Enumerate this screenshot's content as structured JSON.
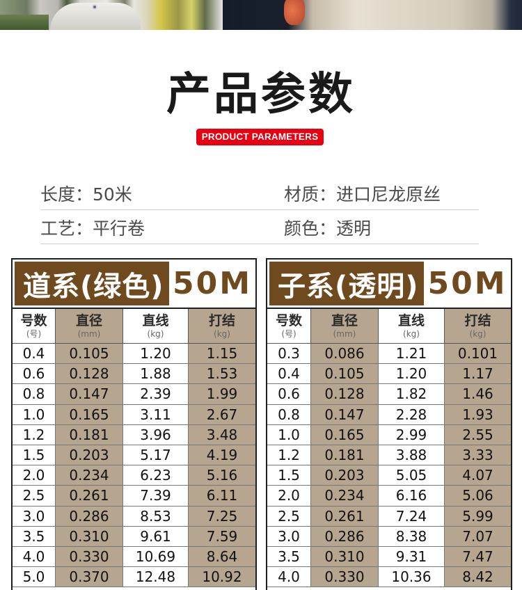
{
  "banner": {
    "left_photo": "fish-on-grass-photo",
    "right_photo": "fish-closeup-photo"
  },
  "title": "产品参数",
  "subtitle": "PRODUCT PARAMETERS",
  "specs": [
    {
      "label": "长度：",
      "value": "50米"
    },
    {
      "label": "材质：",
      "value": "进口尼龙原丝"
    },
    {
      "label": "工艺：",
      "value": "平行卷"
    },
    {
      "label": "颜色：",
      "value": "透明"
    }
  ],
  "colors": {
    "brand_brown": "#6f4a1f",
    "shade_cell": "#b6a690",
    "badge_red": "#e60012"
  },
  "tables": [
    {
      "name": "道系(绿色)",
      "length": "50M",
      "columns": [
        {
          "main": "号数",
          "unit": "(号)"
        },
        {
          "main": "直径",
          "unit": "(mm)"
        },
        {
          "main": "直线",
          "unit": "(kg)"
        },
        {
          "main": "打结",
          "unit": "(kg)"
        }
      ],
      "rows": [
        [
          "0.4",
          "0.105",
          "1.20",
          "1.15"
        ],
        [
          "0.6",
          "0.128",
          "1.88",
          "1.53"
        ],
        [
          "0.8",
          "0.147",
          "2.39",
          "1.99"
        ],
        [
          "1.0",
          "0.165",
          "3.11",
          "2.67"
        ],
        [
          "1.2",
          "0.181",
          "3.96",
          "3.48"
        ],
        [
          "1.5",
          "0.203",
          "5.17",
          "4.19"
        ],
        [
          "2.0",
          "0.234",
          "6.23",
          "5.16"
        ],
        [
          "2.5",
          "0.261",
          "7.39",
          "6.11"
        ],
        [
          "3.0",
          "0.286",
          "8.53",
          "7.25"
        ],
        [
          "3.5",
          "0.310",
          "9.61",
          "7.59"
        ],
        [
          "4.0",
          "0.330",
          "10.69",
          "8.64"
        ],
        [
          "5.0",
          "0.370",
          "12.48",
          "10.92"
        ]
      ]
    },
    {
      "name": "子系(透明)",
      "length": "50M",
      "columns": [
        {
          "main": "号数",
          "unit": "(号)"
        },
        {
          "main": "直径",
          "unit": "(mm)"
        },
        {
          "main": "直线",
          "unit": "(kg)"
        },
        {
          "main": "打结",
          "unit": "(kg)"
        }
      ],
      "rows": [
        [
          "0.3",
          "0.086",
          "1.21",
          "0.101"
        ],
        [
          "0.4",
          "0.105",
          "1.20",
          "1.17"
        ],
        [
          "0.6",
          "0.128",
          "1.82",
          "1.46"
        ],
        [
          "0.8",
          "0.147",
          "2.28",
          "1.93"
        ],
        [
          "1.0",
          "0.165",
          "2.99",
          "2.55"
        ],
        [
          "1.2",
          "0.181",
          "3.88",
          "3.33"
        ],
        [
          "1.5",
          "0.203",
          "5.05",
          "4.07"
        ],
        [
          "2.0",
          "0.234",
          "6.16",
          "5.06"
        ],
        [
          "2.5",
          "0.261",
          "7.24",
          "5.99"
        ],
        [
          "3.0",
          "0.286",
          "8.38",
          "7.07"
        ],
        [
          "3.5",
          "0.310",
          "9.31",
          "7.47"
        ],
        [
          "4.0",
          "0.330",
          "10.36",
          "8.42"
        ]
      ]
    }
  ]
}
